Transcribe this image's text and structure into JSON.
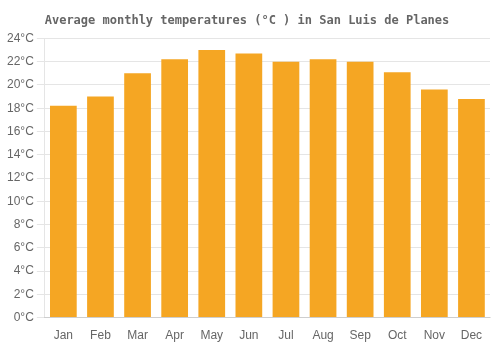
{
  "chart_data": {
    "type": "bar",
    "title": "Average monthly temperatures (°C ) in San Luis de Planes",
    "categories": [
      "Jan",
      "Feb",
      "Mar",
      "Apr",
      "May",
      "Jun",
      "Jul",
      "Aug",
      "Sep",
      "Oct",
      "Nov",
      "Dec"
    ],
    "values": [
      18.2,
      19.0,
      21.0,
      22.2,
      23.0,
      22.7,
      22.0,
      22.2,
      22.0,
      21.1,
      19.6,
      18.8
    ],
    "color": "#F5A623",
    "ylim": [
      0,
      24
    ],
    "yticks": [
      {
        "value": 0,
        "label": "0°C"
      },
      {
        "value": 2,
        "label": "2°C"
      },
      {
        "value": 4,
        "label": "4°C"
      },
      {
        "value": 6,
        "label": "6°C"
      },
      {
        "value": 8,
        "label": "8°C"
      },
      {
        "value": 10,
        "label": "10°C"
      },
      {
        "value": 12,
        "label": "12°C"
      },
      {
        "value": 14,
        "label": "14°C"
      },
      {
        "value": 16,
        "label": "16°C"
      },
      {
        "value": 18,
        "label": "18°C"
      },
      {
        "value": 20,
        "label": "20°C"
      },
      {
        "value": 22,
        "label": "22°C"
      },
      {
        "value": 24,
        "label": "24°C"
      }
    ],
    "grid": true
  }
}
